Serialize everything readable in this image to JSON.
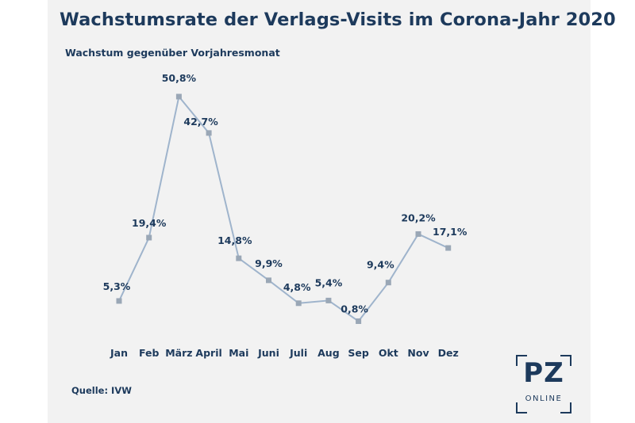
{
  "chart_data": {
    "type": "line",
    "title": "Wachstumsrate der Verlags-Visits im Corona-Jahr 2020",
    "subtitle": "Wachstum gegenüber Vorjahresmonat",
    "source": "Quelle: IVW",
    "categories": [
      "Jan",
      "Feb",
      "März",
      "April",
      "Mai",
      "Juni",
      "Juli",
      "Aug",
      "Sep",
      "Okt",
      "Nov",
      "Dez"
    ],
    "values": [
      5.3,
      19.4,
      50.8,
      42.7,
      14.8,
      9.9,
      4.8,
      5.4,
      0.8,
      9.4,
      20.2,
      17.1
    ],
    "labels": [
      "5,3%",
      "19,4%",
      "50,8%",
      "42,7%",
      "14,8%",
      "9,9%",
      "4,8%",
      "5,4%",
      "0,8%",
      "9,4%",
      "20,2%",
      "17,1%"
    ],
    "ylim": [
      0,
      50.8
    ],
    "grid": false,
    "legend": "none",
    "line_color": "#9fb4cc",
    "marker_color": "#9aa7b6",
    "text_color": "#1d3a5c"
  },
  "logo": {
    "mark": "PZ",
    "sub": "ONLINE"
  }
}
